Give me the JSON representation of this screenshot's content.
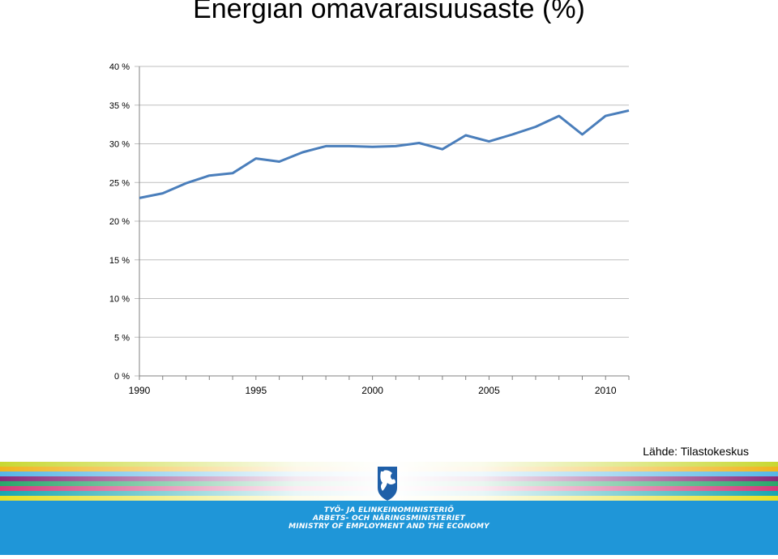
{
  "title": "Energian omavaraisuusaste (%)",
  "source": "Lähde: Tilastokeskus",
  "ministry": {
    "line1": "TYÖ- JA ELINKEINOMINISTERIÖ",
    "line2": "ARBETS- OCH NÄRINGSMINISTERIET",
    "line3": "MINISTRY OF EMPLOYMENT AND THE ECONOMY"
  },
  "colors": {
    "line": "#4a7ebb",
    "footer_blue": "#1f96d8",
    "stripes": [
      "#c8d832",
      "#f0b41e",
      "#56b6e6",
      "#8a2a7a",
      "#2aa66a",
      "#d43a7a",
      "#18a6b0",
      "#e8e023"
    ]
  },
  "icons": {
    "logo": "finnish-lion-icon"
  },
  "chart_data": {
    "type": "line",
    "title": "Energian omavaraisuusaste (%)",
    "xlabel": "",
    "ylabel": "",
    "ylim": [
      0,
      40
    ],
    "y_ticks": [
      "0 %",
      "5 %",
      "10 %",
      "15 %",
      "20 %",
      "25 %",
      "30 %",
      "35 %",
      "40 %"
    ],
    "x_ticks": [
      "1990",
      "1995",
      "2000",
      "2005",
      "2010"
    ],
    "grid": "horizontal",
    "x": [
      1990,
      1991,
      1992,
      1993,
      1994,
      1995,
      1996,
      1997,
      1998,
      1999,
      2000,
      2001,
      2002,
      2003,
      2004,
      2005,
      2006,
      2007,
      2008,
      2009,
      2010,
      2011
    ],
    "series": [
      {
        "values": [
          23.0,
          23.6,
          24.9,
          25.9,
          26.2,
          28.1,
          27.7,
          28.9,
          29.7,
          29.7,
          29.6,
          29.7,
          30.1,
          29.3,
          31.1,
          30.3,
          31.2,
          32.2,
          33.6,
          31.2,
          33.6,
          34.3
        ]
      }
    ]
  }
}
